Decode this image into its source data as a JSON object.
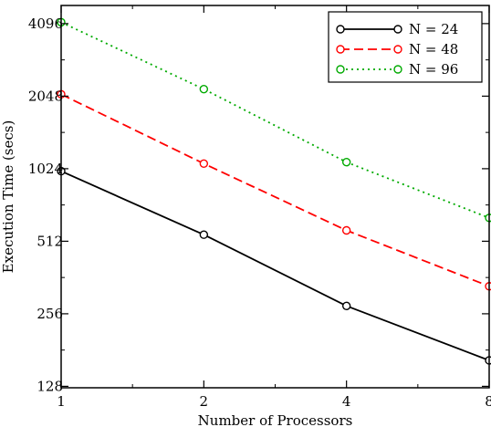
{
  "chart_data": {
    "type": "line",
    "x_scale": "log2",
    "y_scale": "log2",
    "x": [
      1,
      2,
      4,
      8
    ],
    "x_tick_labels": [
      "1",
      "2",
      "4",
      "8"
    ],
    "y_ticks": [
      128,
      256,
      512,
      1024,
      2048,
      4096
    ],
    "y_tick_labels": [
      "128",
      "256",
      "512",
      "1024",
      "2048",
      "4096"
    ],
    "xlim": [
      1,
      8
    ],
    "ylim": [
      128,
      4096
    ],
    "xlabel": "Number of Processors",
    "ylabel": "Execution Time (secs)",
    "legend_position": "top-right",
    "grid": false,
    "series": [
      {
        "name": "N = 24",
        "values": [
          1000,
          545,
          276,
          164
        ],
        "color": "#000000",
        "dash": "solid"
      },
      {
        "name": "N = 48",
        "values": [
          2085,
          1075,
          568,
          333
        ],
        "color": "#ff0000",
        "dash": "dashed"
      },
      {
        "name": "N = 96",
        "values": [
          4150,
          2190,
          1090,
          640
        ],
        "color": "#00aa00",
        "dash": "dotted"
      }
    ]
  }
}
